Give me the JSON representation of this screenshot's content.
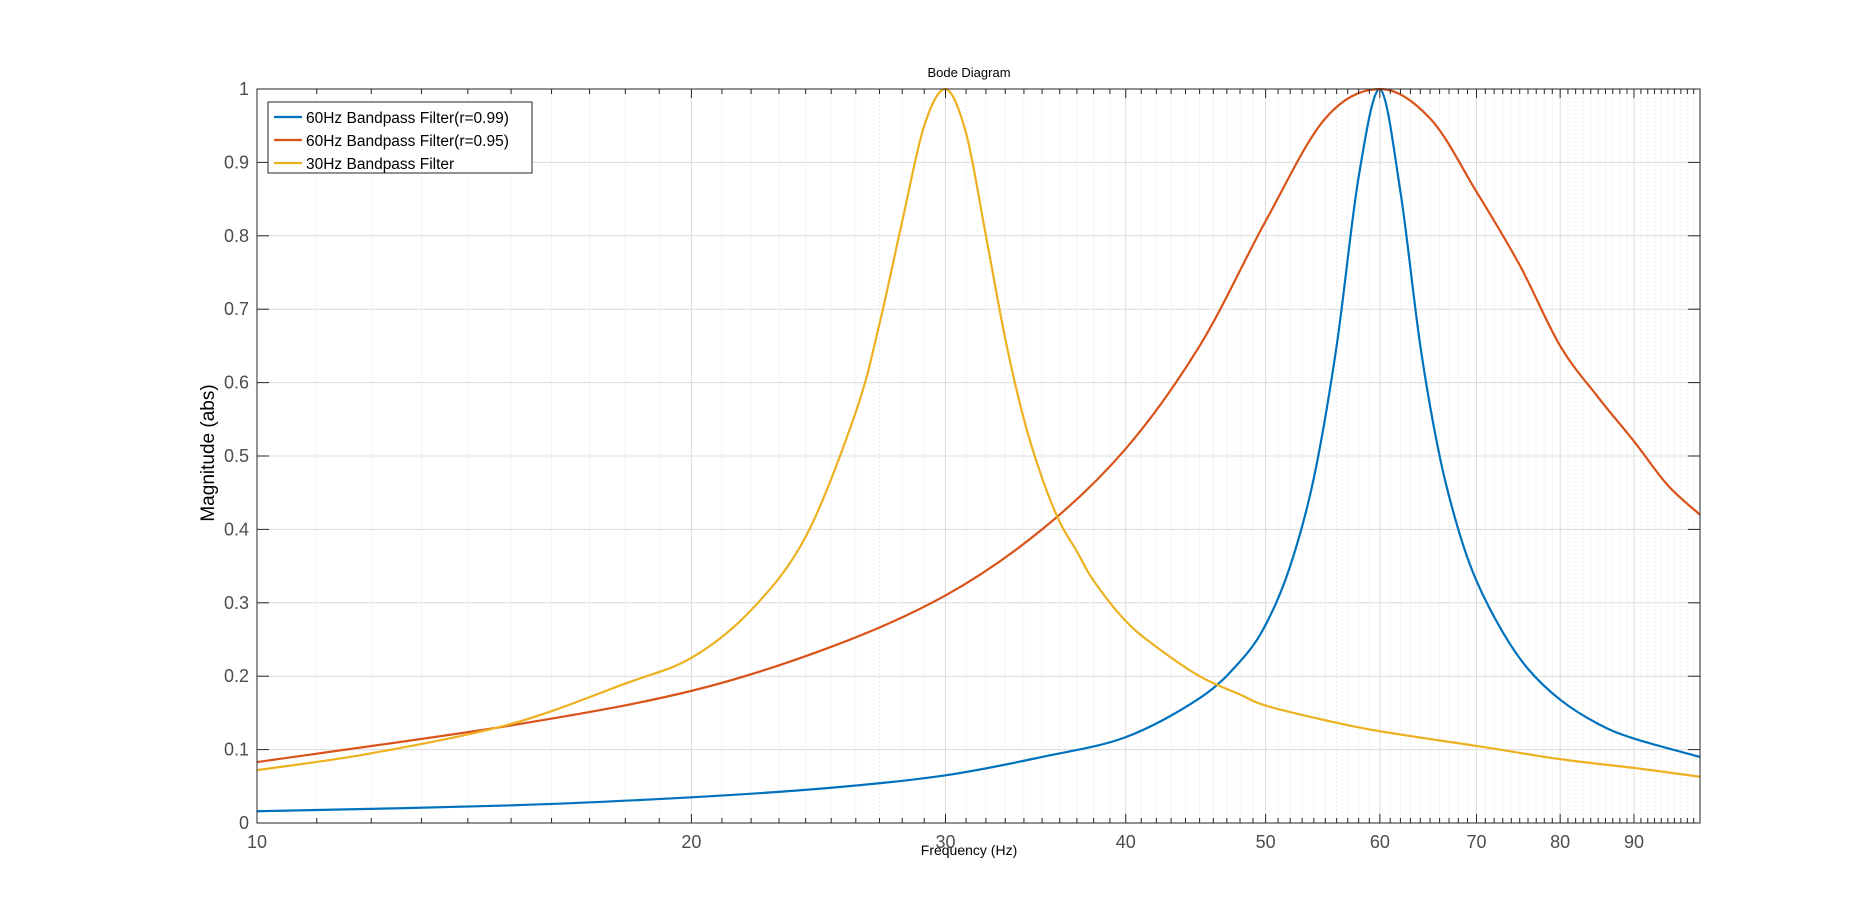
{
  "chart_data": {
    "type": "line",
    "title": "Bode Diagram",
    "xlabel": "Frequency  (Hz)",
    "ylabel": "Magnitude (abs)",
    "xscale": "log",
    "xlim": [
      10,
      100
    ],
    "ylim": [
      0,
      1
    ],
    "grid": true,
    "minor_grid": true,
    "legend_position": "top-left",
    "x_ticks": [
      10,
      20,
      30,
      40,
      50,
      60,
      70,
      80,
      90
    ],
    "x_tick_labels": [
      "10",
      "20",
      "30",
      "40",
      "50",
      "60",
      "70",
      "80",
      "90"
    ],
    "y_ticks": [
      0,
      0.1,
      0.2,
      0.3,
      0.4,
      0.5,
      0.6,
      0.7,
      0.8,
      0.9,
      1
    ],
    "y_tick_labels": [
      "0",
      "0.1",
      "0.2",
      "0.3",
      "0.4",
      "0.5",
      "0.6",
      "0.7",
      "0.8",
      "0.9",
      "1"
    ],
    "series": [
      {
        "name": "60Hz Bandpass Filter(r=0.99)",
        "color": "#0072BD",
        "x": [
          10,
          15,
          20,
          25,
          30,
          35,
          40,
          45,
          48,
          50,
          52,
          54,
          56,
          58,
          60,
          62,
          64,
          66,
          68,
          70,
          73,
          76,
          80,
          85,
          90,
          100
        ],
        "y": [
          0.016,
          0.024,
          0.035,
          0.048,
          0.065,
          0.09,
          0.117,
          0.17,
          0.22,
          0.27,
          0.35,
          0.47,
          0.65,
          0.88,
          1.0,
          0.86,
          0.65,
          0.5,
          0.4,
          0.33,
          0.26,
          0.21,
          0.168,
          0.135,
          0.115,
          0.09
        ]
      },
      {
        "name": "60Hz Bandpass Filter(r=0.95)",
        "color": "#D95319",
        "x": [
          10,
          15,
          20,
          25,
          30,
          35,
          40,
          45,
          50,
          55,
          60,
          65,
          70,
          75,
          80,
          85,
          90,
          95,
          100
        ],
        "y": [
          0.083,
          0.133,
          0.18,
          0.24,
          0.31,
          0.4,
          0.51,
          0.65,
          0.82,
          0.96,
          1.0,
          0.96,
          0.86,
          0.76,
          0.65,
          0.58,
          0.52,
          0.46,
          0.42
        ]
      },
      {
        "name": "30Hz Bandpass Filter",
        "color": "#EDB120",
        "x": [
          10,
          12,
          15,
          18,
          20,
          22,
          24,
          26,
          27,
          28,
          29,
          30,
          31,
          32,
          33,
          34,
          35,
          36,
          37,
          38,
          40,
          42,
          45,
          48,
          50,
          55,
          60,
          70,
          80,
          90,
          100
        ],
        "y": [
          0.072,
          0.095,
          0.135,
          0.19,
          0.225,
          0.29,
          0.39,
          0.56,
          0.68,
          0.82,
          0.95,
          1.0,
          0.94,
          0.8,
          0.66,
          0.55,
          0.47,
          0.41,
          0.37,
          0.33,
          0.275,
          0.24,
          0.2,
          0.175,
          0.16,
          0.14,
          0.125,
          0.105,
          0.087,
          0.075,
          0.063
        ]
      }
    ]
  }
}
